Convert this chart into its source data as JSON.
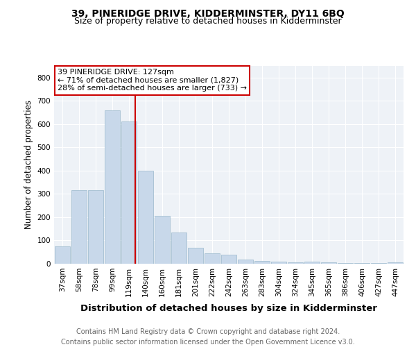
{
  "title": "39, PINERIDGE DRIVE, KIDDERMINSTER, DY11 6BQ",
  "subtitle": "Size of property relative to detached houses in Kidderminster",
  "xlabel": "Distribution of detached houses by size in Kidderminster",
  "ylabel": "Number of detached properties",
  "categories": [
    "37sqm",
    "58sqm",
    "78sqm",
    "99sqm",
    "119sqm",
    "140sqm",
    "160sqm",
    "181sqm",
    "201sqm",
    "222sqm",
    "242sqm",
    "263sqm",
    "283sqm",
    "304sqm",
    "324sqm",
    "345sqm",
    "365sqm",
    "386sqm",
    "406sqm",
    "427sqm",
    "447sqm"
  ],
  "values": [
    75,
    315,
    315,
    660,
    610,
    400,
    205,
    135,
    70,
    45,
    38,
    18,
    12,
    10,
    5,
    8,
    5,
    3,
    2,
    2,
    7
  ],
  "bar_color": "#c8d8ea",
  "bar_edge_color": "#9ab8cc",
  "red_line_color": "#cc0000",
  "annotation_box_text": "39 PINERIDGE DRIVE: 127sqm\n← 71% of detached houses are smaller (1,827)\n28% of semi-detached houses are larger (733) →",
  "annotation_fontsize": 8,
  "footnote": "Contains HM Land Registry data © Crown copyright and database right 2024.\nContains public sector information licensed under the Open Government Licence v3.0.",
  "ylim": [
    0,
    850
  ],
  "yticks": [
    0,
    100,
    200,
    300,
    400,
    500,
    600,
    700,
    800
  ],
  "title_fontsize": 10,
  "subtitle_fontsize": 9,
  "xlabel_fontsize": 9.5,
  "ylabel_fontsize": 8.5,
  "tick_fontsize": 7.5,
  "footnote_fontsize": 7,
  "bg_color": "#eef2f7",
  "fig_bg_color": "#ffffff"
}
